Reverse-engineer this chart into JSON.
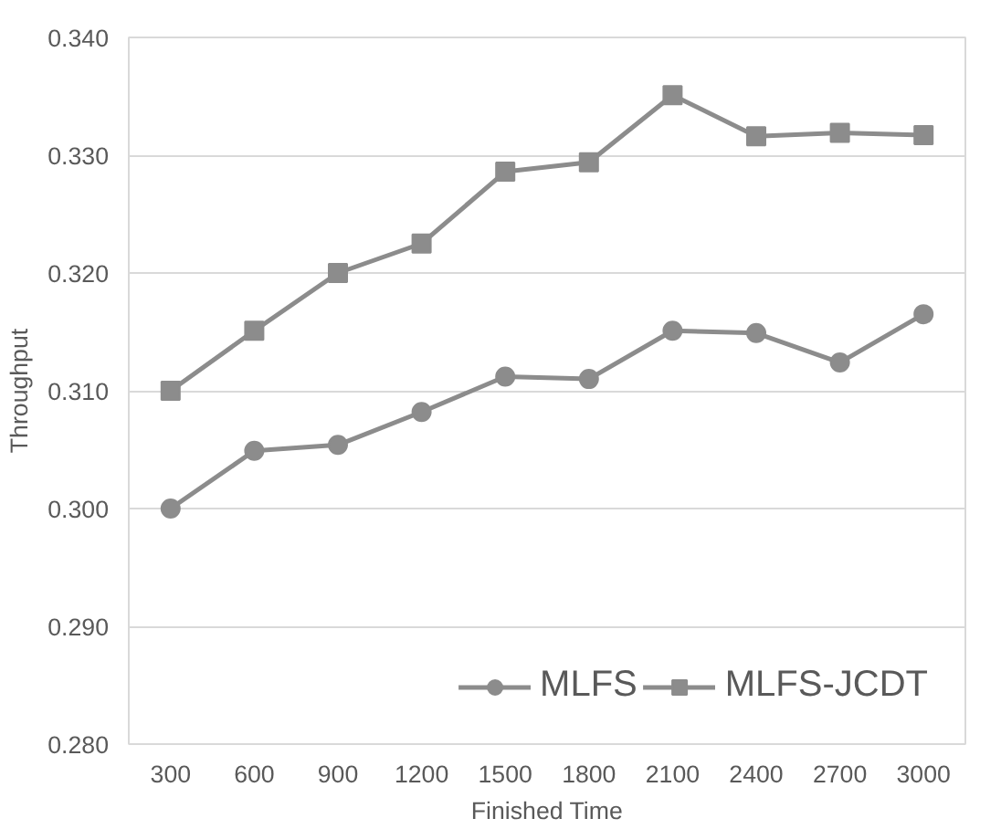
{
  "chart_data": {
    "type": "line",
    "xlabel": "Finished Time",
    "ylabel": "Throughput",
    "categories": [
      "300",
      "600",
      "900",
      "1200",
      "1500",
      "1800",
      "2100",
      "2400",
      "2700",
      "3000"
    ],
    "series": [
      {
        "name": "MLFS",
        "color": "#8c8c8c",
        "marker": "circle",
        "values": [
          0.3,
          0.3049,
          0.3054,
          0.3082,
          0.3112,
          0.311,
          0.3151,
          0.3149,
          0.3124,
          0.3165
        ]
      },
      {
        "name": "MLFS-JCDT",
        "color": "#8c8c8c",
        "marker": "square",
        "values": [
          0.31,
          0.3151,
          0.32,
          0.3225,
          0.3286,
          0.3294,
          0.3351,
          0.3316,
          0.3319,
          0.3317
        ]
      }
    ],
    "ylim": [
      0.28,
      0.34
    ],
    "yticks": [
      {
        "value": 0.28,
        "label": "0.280"
      },
      {
        "value": 0.29,
        "label": "0.290"
      },
      {
        "value": 0.3,
        "label": "0.300"
      },
      {
        "value": 0.31,
        "label": "0.310"
      },
      {
        "value": 0.32,
        "label": "0.320"
      },
      {
        "value": 0.33,
        "label": "0.330"
      },
      {
        "value": 0.34,
        "label": "0.340"
      }
    ],
    "grid": "y",
    "legend": "bottom right",
    "line_style": "solid"
  }
}
